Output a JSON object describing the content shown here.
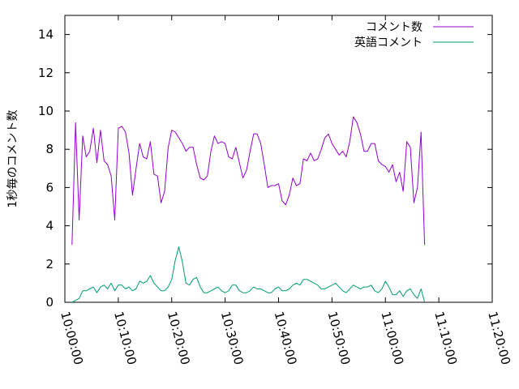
{
  "chart_data": {
    "type": "line",
    "xlabel": "",
    "ylabel": "1秒毎のコメント数",
    "xlim": [
      "10:00:00",
      "11:20:00"
    ],
    "ylim": [
      0,
      15
    ],
    "x_ticks": [
      "10:00:00",
      "10:10:00",
      "10:20:00",
      "10:30:00",
      "10:40:00",
      "10:50:00",
      "11:00:00",
      "11:10:00",
      "11:20:00"
    ],
    "y_ticks": [
      "0",
      "2",
      "4",
      "6",
      "8",
      "10",
      "12",
      "14"
    ],
    "grid": false,
    "legend_position": "top-right",
    "sample_interval_seconds": 40,
    "x_start": "10:01:20",
    "series": [
      {
        "name": "コメント数",
        "color": "#9400d3",
        "values": [
          3.0,
          9.4,
          4.3,
          8.7,
          7.6,
          7.9,
          9.1,
          7.3,
          9.0,
          7.4,
          7.2,
          6.6,
          4.3,
          9.1,
          9.2,
          8.9,
          7.8,
          5.6,
          7.0,
          8.3,
          7.6,
          7.5,
          8.4,
          6.7,
          6.6,
          5.2,
          5.8,
          8.1,
          9.0,
          8.9,
          8.6,
          8.3,
          7.9,
          8.1,
          8.1,
          7.2,
          6.5,
          6.4,
          6.6,
          7.9,
          8.7,
          8.3,
          8.4,
          8.3,
          7.6,
          7.5,
          8.1,
          7.3,
          6.5,
          6.9,
          7.9,
          8.8,
          8.8,
          8.3,
          7.2,
          6.0,
          6.1,
          6.1,
          6.2,
          5.3,
          5.1,
          5.6,
          6.5,
          6.1,
          6.2,
          7.5,
          7.4,
          7.8,
          7.4,
          7.5,
          8.0,
          8.6,
          8.8,
          8.3,
          8.0,
          7.7,
          7.9,
          7.6,
          8.4,
          9.7,
          9.4,
          8.8,
          7.9,
          7.9,
          8.3,
          8.3,
          7.4,
          7.2,
          7.1,
          6.8,
          7.2,
          6.3,
          6.8,
          5.8,
          8.4,
          8.1,
          5.2,
          6.0,
          8.9,
          3.0
        ]
      },
      {
        "name": "英語コメント",
        "color": "#009e73",
        "values": [
          0.0,
          0.1,
          0.2,
          0.6,
          0.6,
          0.7,
          0.8,
          0.5,
          0.8,
          0.9,
          0.7,
          1.0,
          0.6,
          0.9,
          0.9,
          0.7,
          0.8,
          0.6,
          0.7,
          1.1,
          1.0,
          1.1,
          1.4,
          1.0,
          0.8,
          0.6,
          0.6,
          0.8,
          1.2,
          2.2,
          2.9,
          2.1,
          1.0,
          0.9,
          1.2,
          1.3,
          0.8,
          0.5,
          0.5,
          0.6,
          0.7,
          0.8,
          0.6,
          0.5,
          0.6,
          0.9,
          0.9,
          0.6,
          0.5,
          0.5,
          0.6,
          0.8,
          0.7,
          0.7,
          0.6,
          0.5,
          0.5,
          0.7,
          0.8,
          0.6,
          0.6,
          0.7,
          0.9,
          1.0,
          0.9,
          1.2,
          1.2,
          1.1,
          1.0,
          0.9,
          0.7,
          0.7,
          0.8,
          0.9,
          1.0,
          0.8,
          0.6,
          0.5,
          0.7,
          0.9,
          0.8,
          0.7,
          0.8,
          0.8,
          0.9,
          0.6,
          0.5,
          0.7,
          1.1,
          0.8,
          0.4,
          0.4,
          0.6,
          0.3,
          0.6,
          0.7,
          0.4,
          0.2,
          0.7,
          0.0
        ]
      }
    ]
  }
}
